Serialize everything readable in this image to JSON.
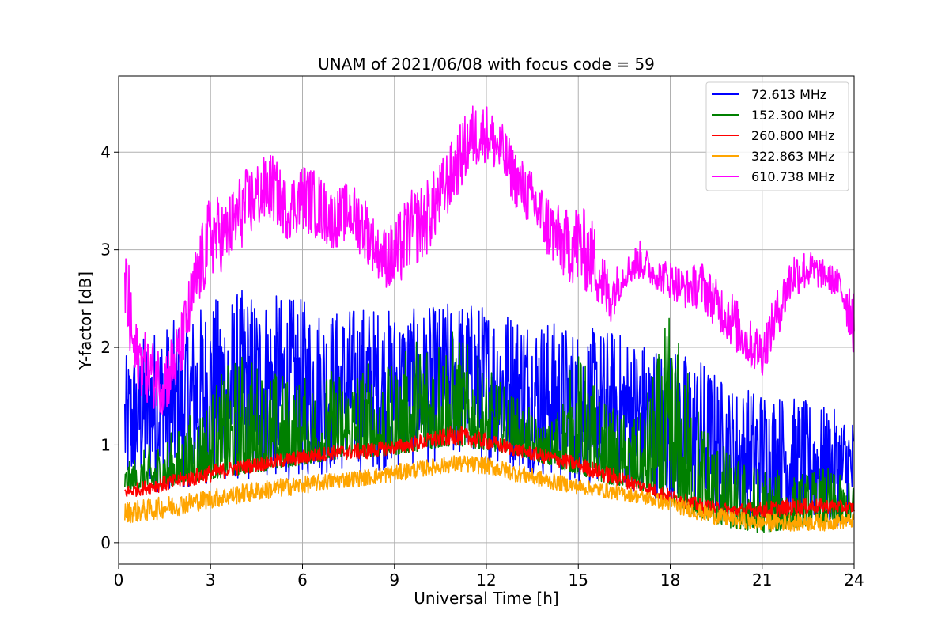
{
  "chart_data": {
    "type": "line",
    "title": "UNAM of 2021/06/08 with focus code = 59",
    "xlabel": "Universal Time [h]",
    "ylabel": "Y-factor [dB]",
    "xlim": [
      0,
      24
    ],
    "ylim": [
      -0.22,
      4.78
    ],
    "xticks": [
      "0",
      "3",
      "6",
      "9",
      "12",
      "15",
      "18",
      "21",
      "24"
    ],
    "yticks": [
      "0",
      "1",
      "2",
      "3",
      "4"
    ],
    "grid": true,
    "legend_position": "top-right",
    "series": [
      {
        "name": " 72.613 MHz",
        "color": "#0000ff",
        "x": [
          0.2,
          1,
          2,
          3,
          4,
          5,
          6,
          7,
          8,
          9,
          10,
          11,
          12,
          13,
          14,
          15,
          16,
          17,
          18,
          19,
          20,
          21,
          22,
          23,
          24
        ],
        "low": [
          0.5,
          0.5,
          0.55,
          0.6,
          0.6,
          0.62,
          0.65,
          0.7,
          0.72,
          0.75,
          0.8,
          0.85,
          0.82,
          0.75,
          0.65,
          0.6,
          0.55,
          0.5,
          0.4,
          0.3,
          0.2,
          0.15,
          0.15,
          0.15,
          0.2
        ],
        "high": [
          1.9,
          2.2,
          2.3,
          2.5,
          2.6,
          2.55,
          2.5,
          2.4,
          2.45,
          2.4,
          2.4,
          2.5,
          2.45,
          2.4,
          2.3,
          2.2,
          2.2,
          2.1,
          2.0,
          1.9,
          1.6,
          1.6,
          1.5,
          1.4,
          1.3
        ]
      },
      {
        "name": "152.300 MHz",
        "color": "#008000",
        "x": [
          0.2,
          1,
          2,
          3,
          4,
          5,
          6,
          7,
          8,
          9,
          10,
          11,
          12,
          13,
          14,
          15,
          16,
          17,
          18,
          19,
          20,
          21,
          22,
          23,
          24
        ],
        "low": [
          0.55,
          0.55,
          0.6,
          0.65,
          0.7,
          0.75,
          0.8,
          0.85,
          0.88,
          0.9,
          0.95,
          1.0,
          0.95,
          0.9,
          0.8,
          0.7,
          0.6,
          0.55,
          0.4,
          0.25,
          0.15,
          0.1,
          0.15,
          0.2,
          0.25
        ],
        "high": [
          0.8,
          1.0,
          1.2,
          1.6,
          2.0,
          1.8,
          1.7,
          1.8,
          1.9,
          1.8,
          2.3,
          2.2,
          1.8,
          1.5,
          1.2,
          2.0,
          1.4,
          1.3,
          2.4,
          1.4,
          0.9,
          0.8,
          0.7,
          0.8,
          0.6
        ]
      },
      {
        "name": "260.800 MHz",
        "color": "#ff0000",
        "x": [
          0.2,
          1,
          2,
          3,
          4,
          5,
          6,
          7,
          8,
          9,
          10,
          11,
          12,
          13,
          14,
          15,
          16,
          17,
          18,
          19,
          20,
          21,
          22,
          23,
          24
        ],
        "low": [
          0.45,
          0.5,
          0.55,
          0.62,
          0.7,
          0.75,
          0.8,
          0.85,
          0.85,
          0.9,
          0.95,
          1.0,
          0.95,
          0.88,
          0.8,
          0.72,
          0.6,
          0.52,
          0.4,
          0.3,
          0.25,
          0.25,
          0.28,
          0.3,
          0.3
        ],
        "high": [
          0.58,
          0.65,
          0.72,
          0.8,
          0.85,
          0.9,
          0.95,
          1.0,
          1.02,
          1.05,
          1.12,
          1.2,
          1.12,
          1.02,
          0.95,
          0.88,
          0.78,
          0.65,
          0.55,
          0.45,
          0.4,
          0.42,
          0.45,
          0.45,
          0.42
        ]
      },
      {
        "name": "322.863 MHz",
        "color": "#ffa500",
        "x": [
          0.2,
          1,
          2,
          3,
          4,
          5,
          6,
          7,
          8,
          9,
          10,
          11,
          12,
          13,
          14,
          15,
          16,
          17,
          18,
          19,
          20,
          21,
          22,
          23,
          24
        ],
        "low": [
          0.2,
          0.22,
          0.28,
          0.35,
          0.4,
          0.45,
          0.5,
          0.55,
          0.58,
          0.62,
          0.68,
          0.72,
          0.7,
          0.62,
          0.55,
          0.5,
          0.45,
          0.4,
          0.32,
          0.22,
          0.15,
          0.12,
          0.12,
          0.12,
          0.15
        ],
        "high": [
          0.42,
          0.45,
          0.5,
          0.55,
          0.6,
          0.65,
          0.68,
          0.72,
          0.75,
          0.8,
          0.85,
          0.9,
          0.88,
          0.8,
          0.72,
          0.65,
          0.6,
          0.55,
          0.48,
          0.4,
          0.32,
          0.3,
          0.3,
          0.3,
          0.3
        ]
      },
      {
        "name": "610.738 MHz",
        "color": "#ff00ff",
        "x": [
          0.2,
          0.5,
          1,
          1.5,
          2,
          2.5,
          3,
          3.5,
          4,
          4.5,
          5,
          5.5,
          6,
          6.5,
          7,
          7.5,
          8,
          8.5,
          9,
          9.5,
          10,
          10.5,
          11,
          11.5,
          12,
          12.5,
          13,
          13.5,
          14,
          14.5,
          15,
          15.5,
          16,
          16.5,
          17,
          17.5,
          18,
          18.5,
          19,
          19.5,
          20,
          20.5,
          21,
          21.5,
          22,
          22.5,
          23,
          23.5,
          24
        ],
        "low": [
          2.1,
          1.6,
          1.4,
          1.3,
          1.6,
          2.3,
          2.7,
          2.8,
          3.0,
          3.2,
          3.3,
          3.1,
          3.2,
          3.1,
          3.0,
          3.1,
          2.9,
          2.7,
          2.5,
          2.8,
          2.9,
          3.2,
          3.5,
          3.8,
          3.9,
          3.7,
          3.4,
          3.2,
          2.9,
          2.7,
          2.6,
          2.5,
          2.2,
          2.6,
          2.7,
          2.6,
          2.5,
          2.4,
          2.4,
          2.2,
          2.0,
          1.8,
          1.7,
          2.1,
          2.5,
          2.6,
          2.6,
          2.5,
          1.9
        ],
        "high": [
          3.3,
          2.3,
          2.1,
          2.0,
          2.3,
          3.0,
          3.6,
          3.5,
          3.8,
          3.9,
          4.0,
          3.7,
          3.9,
          3.8,
          3.6,
          3.7,
          3.6,
          3.2,
          3.3,
          3.6,
          3.7,
          3.9,
          4.2,
          4.5,
          4.5,
          4.3,
          4.0,
          3.8,
          3.6,
          3.4,
          3.5,
          3.3,
          2.8,
          2.9,
          3.1,
          2.9,
          2.9,
          2.8,
          2.9,
          2.7,
          2.6,
          2.3,
          2.2,
          2.6,
          3.0,
          3.0,
          2.9,
          2.8,
          2.7
        ]
      }
    ]
  }
}
